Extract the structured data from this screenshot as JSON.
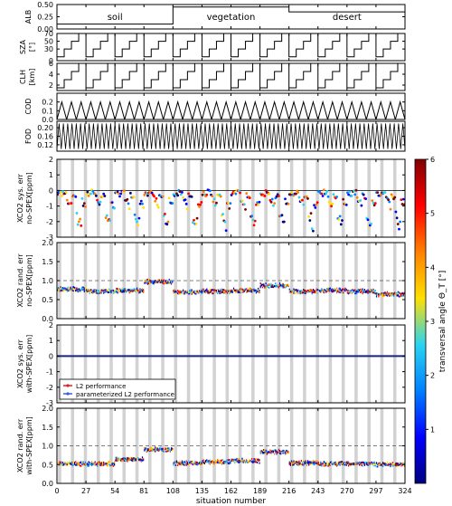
{
  "chart_data": {
    "type": "line",
    "xlabel": "situation number",
    "x_ticks": [
      0,
      27,
      54,
      81,
      108,
      135,
      162,
      189,
      216,
      243,
      270,
      297,
      324
    ],
    "xlim": [
      0,
      324
    ],
    "surfaces": [
      "soil",
      "vegetation",
      "desert"
    ],
    "colorbar": {
      "label": "transversal angle Θ_T [°]",
      "ticks": [
        1,
        2,
        3,
        4,
        5,
        6
      ],
      "range": [
        0,
        6
      ],
      "colors": [
        "#00007f",
        "#0000ff",
        "#0080ff",
        "#2ad4f0",
        "#ffe000",
        "#ff8000",
        "#ff0000",
        "#800000"
      ]
    },
    "legend": {
      "entries": [
        "L2 performance",
        "parameterized L2 performance"
      ],
      "placement": "lower-left"
    },
    "panels": [
      {
        "id": "alb",
        "ylabel": [
          "ALB"
        ],
        "ylim": [
          0,
          0.5
        ],
        "yticks": [
          "0.00",
          "0.25",
          "0.50"
        ],
        "series": {
          "segment_values": [
            0.1,
            0.45,
            0.35
          ]
        }
      },
      {
        "id": "sza",
        "ylabel": [
          "SZA",
          "[°]"
        ],
        "ylim": [
          0,
          70
        ],
        "yticks": [
          "0",
          "30",
          "50",
          "70"
        ],
        "series": {
          "cycle_length": 27,
          "levels": [
            10,
            30,
            50,
            70
          ]
        }
      },
      {
        "id": "clh",
        "ylabel": [
          "CLH",
          "[km]"
        ],
        "ylim": [
          1,
          6
        ],
        "yticks": [
          "2",
          "4",
          "6"
        ],
        "series": {
          "levels": [
            1.5,
            3,
            4.5,
            6
          ]
        }
      },
      {
        "id": "cod",
        "ylabel": [
          "COD"
        ],
        "ylim": [
          0,
          0.3
        ],
        "yticks": [
          "0.0",
          "0.1",
          "0.2"
        ],
        "series": {
          "levels": [
            0.0,
            0.2
          ]
        }
      },
      {
        "id": "fod",
        "ylabel": [
          "FOD"
        ],
        "ylim": [
          0.09,
          0.23
        ],
        "yticks": [
          "0.12",
          "0.16",
          "0.20"
        ],
        "series": {
          "levels": [
            0.1,
            0.22
          ]
        }
      },
      {
        "id": "sys1",
        "ylabel": [
          "XCO2 sys. err",
          "no-SPEX[ppm]"
        ],
        "ylim": [
          -3,
          2
        ],
        "yticks": [
          "-3",
          "-2",
          "-1",
          "0",
          "1",
          "2"
        ],
        "dashed_ref": 0
      },
      {
        "id": "rnd1",
        "ylabel": [
          "XCO2 rand. err",
          "no-SPEX[ppm]"
        ],
        "ylim": [
          0,
          2
        ],
        "yticks": [
          "0.0",
          "0.5",
          "1.0",
          "1.5",
          "2.0"
        ],
        "dashed_ref": 1.0
      },
      {
        "id": "sys2",
        "ylabel": [
          "XCO2 sys. err",
          "with-SPEX[ppm]"
        ],
        "ylim": [
          -3,
          2
        ],
        "yticks": [
          "-3",
          "-2",
          "-1",
          "0",
          "1",
          "2"
        ]
      },
      {
        "id": "rnd2",
        "ylabel": [
          "XCO2 rand. err",
          "with-SPEX[ppm]"
        ],
        "ylim": [
          0,
          2
        ],
        "yticks": [
          "0.0",
          "0.5",
          "1.0",
          "1.5",
          "2.0"
        ],
        "dashed_ref": 1.0
      }
    ]
  }
}
